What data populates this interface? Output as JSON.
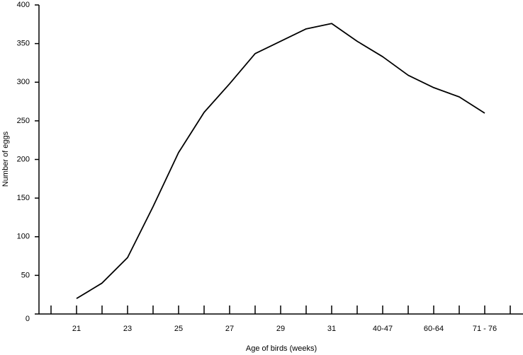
{
  "chart_data": {
    "type": "line",
    "x_label": "Age of birds (weeks)",
    "y_label": "Number of eggs",
    "categories": [
      null,
      "21",
      null,
      "23",
      null,
      "25",
      null,
      "27",
      null,
      "29",
      null,
      "31",
      null,
      "40-47",
      null,
      "60-64",
      null,
      "71 - 76",
      null
    ],
    "series": [
      {
        "name": "Number of eggs",
        "color": "#000000",
        "values": [
          null,
          20,
          40,
          73,
          139,
          209,
          261,
          298,
          337,
          353,
          369,
          376,
          353,
          333,
          309,
          293,
          281,
          260,
          null
        ]
      }
    ],
    "ylim": [
      0,
      400
    ],
    "yticks": [
      0,
      50,
      100,
      150,
      200,
      250,
      300,
      350,
      400
    ],
    "grid": false
  }
}
